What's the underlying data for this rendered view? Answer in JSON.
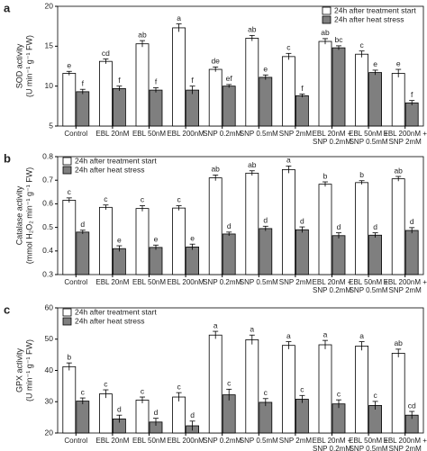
{
  "chart_data": [
    {
      "type": "bar",
      "panel": "a",
      "ylabel": [
        "SOD activity",
        "(U min⁻¹ g⁻¹ FW)"
      ],
      "categories": [
        [
          "Control"
        ],
        [
          "EBL 20nM"
        ],
        [
          "EBL 50nM"
        ],
        [
          "EBL 200nM"
        ],
        [
          "SNP 0.2mM"
        ],
        [
          "SNP 0.5mM"
        ],
        [
          "SNP 2mM"
        ],
        [
          "EBL 20nM +",
          "SNP 0.2mM"
        ],
        [
          "EBL 50nM +",
          "SNP 0.5mM"
        ],
        [
          "EBL 200nM +",
          "SNP 2mM"
        ]
      ],
      "series": [
        {
          "name": "24h after treatment start",
          "color": "#ffffff",
          "values": [
            11.6,
            13.1,
            15.3,
            17.3,
            12.1,
            16.0,
            13.7,
            15.6,
            14.0,
            11.6
          ],
          "errors": [
            0.25,
            0.3,
            0.4,
            0.5,
            0.3,
            0.35,
            0.4,
            0.35,
            0.4,
            0.5
          ],
          "letters": [
            "e",
            "cd",
            "ab",
            "a",
            "de",
            "ab",
            "c",
            "ab",
            "c",
            "e"
          ]
        },
        {
          "name": "24h after heat stress",
          "color": "#7f7f7f",
          "values": [
            9.3,
            9.7,
            9.5,
            9.5,
            10.0,
            11.1,
            8.8,
            14.8,
            11.7,
            7.9
          ],
          "errors": [
            0.3,
            0.3,
            0.3,
            0.5,
            0.2,
            0.3,
            0.2,
            0.25,
            0.3,
            0.3
          ],
          "letters": [
            "f",
            "f",
            "f",
            "f",
            "ef",
            "e",
            "f",
            "bc",
            "e",
            "f"
          ]
        }
      ],
      "ylim": [
        5,
        20
      ],
      "yticks": [
        5,
        10,
        15,
        20
      ],
      "legend": "upper right"
    },
    {
      "type": "bar",
      "panel": "b",
      "ylabel": [
        "Catalase activity",
        "(mmol H₂O₂ min⁻¹ g⁻¹ FW)"
      ],
      "categories": [
        [
          "Control"
        ],
        [
          "EBL 20nM"
        ],
        [
          "EBL 50nM"
        ],
        [
          "EBL 200nM"
        ],
        [
          "SNP 0.2mM"
        ],
        [
          "SNP 0.5mM"
        ],
        [
          "SNP 2mM"
        ],
        [
          "EBL 20nM +",
          "SNP 0.2mM"
        ],
        [
          "EBL 50nM +",
          "SNP 0.5mM"
        ],
        [
          "EBL 200nM +",
          "SNP 2mM"
        ]
      ],
      "series": [
        {
          "name": "24h after treatment start",
          "color": "#ffffff",
          "values": [
            0.615,
            0.585,
            0.58,
            0.582,
            0.71,
            0.73,
            0.745,
            0.683,
            0.69,
            0.706
          ],
          "errors": [
            0.01,
            0.01,
            0.012,
            0.01,
            0.012,
            0.01,
            0.015,
            0.01,
            0.008,
            0.01
          ],
          "letters": [
            "c",
            "c",
            "c",
            "c",
            "ab",
            "ab",
            "a",
            "b",
            "b",
            "ab"
          ]
        },
        {
          "name": "24h after heat stress",
          "color": "#7f7f7f",
          "values": [
            0.48,
            0.41,
            0.415,
            0.417,
            0.472,
            0.495,
            0.49,
            0.465,
            0.467,
            0.487
          ],
          "errors": [
            0.008,
            0.012,
            0.01,
            0.012,
            0.008,
            0.01,
            0.012,
            0.012,
            0.01,
            0.012
          ],
          "letters": [
            "d",
            "e",
            "e",
            "e",
            "d",
            "d",
            "d",
            "d",
            "d",
            "d"
          ]
        }
      ],
      "ylim": [
        0.3,
        0.8
      ],
      "yticks": [
        0.3,
        0.4,
        0.5,
        0.6,
        0.7,
        0.8
      ],
      "legend": "upper left"
    },
    {
      "type": "bar",
      "panel": "c",
      "ylabel": [
        "GPX activity",
        "(U min⁻¹ g⁻¹ FW)"
      ],
      "categories": [
        [
          "Control"
        ],
        [
          "EBL 20nM"
        ],
        [
          "EBL 50nM"
        ],
        [
          "EBL 200nM"
        ],
        [
          "SNP 0.2mM"
        ],
        [
          "SNP 0.5mM"
        ],
        [
          "SNP 2mM"
        ],
        [
          "EBL 20nM +",
          "SNP 0.2mM"
        ],
        [
          "EBL 50nM +",
          "SNP 0.5mM"
        ],
        [
          "EBL 200nM +",
          "SNP 2mM"
        ]
      ],
      "series": [
        {
          "name": "24h after treatment start",
          "color": "#ffffff",
          "values": [
            41.2,
            32.5,
            30.5,
            31.5,
            51.3,
            49.8,
            48.0,
            48.2,
            47.8,
            45.5
          ],
          "errors": [
            1.2,
            1.3,
            1.0,
            1.4,
            1.2,
            1.5,
            1.2,
            1.4,
            1.4,
            1.3
          ],
          "letters": [
            "b",
            "c",
            "c",
            "c",
            "a",
            "a",
            "a",
            "a",
            "a",
            "ab"
          ]
        },
        {
          "name": "24h after heat stress",
          "color": "#7f7f7f",
          "values": [
            30.2,
            24.5,
            23.5,
            22.3,
            32.2,
            29.8,
            30.8,
            29.3,
            28.8,
            25.7
          ],
          "errors": [
            1.0,
            1.2,
            1.2,
            1.5,
            1.8,
            1.2,
            1.2,
            1.3,
            1.3,
            1.2
          ],
          "letters": [
            "c",
            "d",
            "d",
            "d",
            "c",
            "c",
            "c",
            "c",
            "c",
            "cd"
          ]
        }
      ],
      "ylim": [
        20,
        60
      ],
      "yticks": [
        20,
        30,
        40,
        50,
        60
      ],
      "legend": "upper left"
    }
  ]
}
